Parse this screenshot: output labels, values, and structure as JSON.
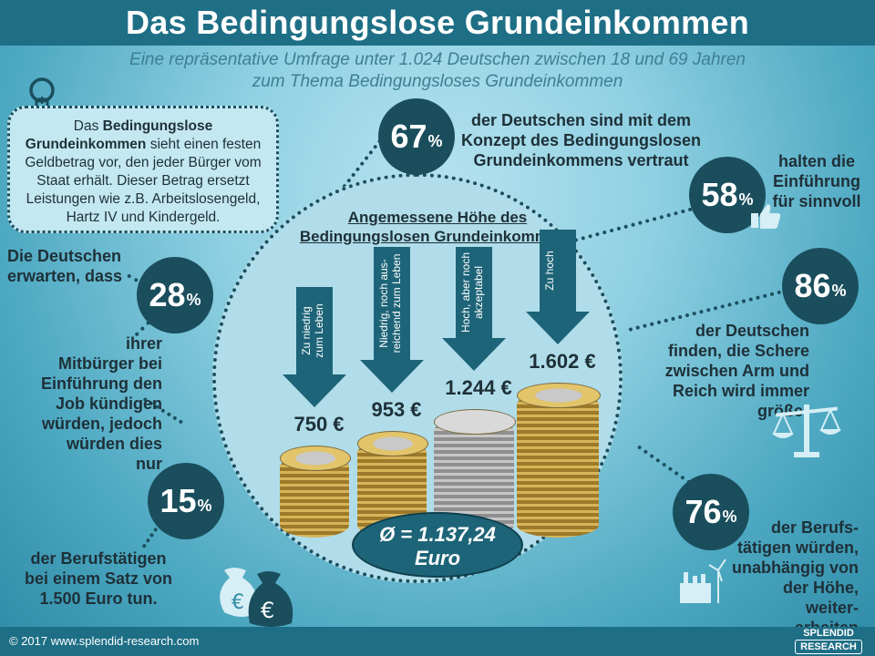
{
  "title": "Das Bedingungslose Grundeinkommen",
  "subtitle_line1": "Eine repräsentative Umfrage unter 1.024 Deutschen zwischen 18 und 69 Jahren",
  "subtitle_line2": "zum Thema Bedingungsloses  Grundeinkommen",
  "info": {
    "p1": "Das ",
    "p1_bold": "Bedingungslose",
    "p2_bold": "Grundeinkommen",
    "p2": " sieht einen festen",
    "line3": "Geldbetrag vor, den jeder Bürger vom",
    "line4": "Staat erhält. Dieser Betrag ersetzt",
    "line5": "Leistungen wie z.B. Arbeitslosengeld,",
    "line6": "Hartz IV und Kindergeld."
  },
  "stats": {
    "s67": {
      "value": "67",
      "unit": "%",
      "text": [
        "der Deutschen sind mit dem",
        "Konzept des Bedingungslosen",
        "Grundeinkommens vertraut"
      ]
    },
    "s58": {
      "value": "58",
      "unit": "%",
      "text": [
        "halten die",
        "Einführung",
        "für sinnvoll"
      ]
    },
    "s86": {
      "value": "86",
      "unit": "%",
      "text": [
        "der Deutschen",
        "finden, die Schere",
        "zwischen Arm und",
        "Reich wird immer",
        "größer"
      ]
    },
    "s76": {
      "value": "76",
      "unit": "%",
      "text": [
        "der Berufs-",
        "tätigen würden,",
        "unabhängig von",
        "der Höhe, weiter-",
        "arbeiten"
      ]
    },
    "s28": {
      "value": "28",
      "unit": "%",
      "pre": [
        "Die Deutschen",
        "erwarten, dass"
      ],
      "text": [
        "ihrer",
        "Mitbürger bei",
        "Einführung den",
        "Job kündigen",
        "würden, jedoch",
        "würden dies nur"
      ]
    },
    "s15": {
      "value": "15",
      "unit": "%",
      "text": [
        "der Berufstätigen",
        "bei einem Satz von",
        "1.500 Euro tun."
      ]
    }
  },
  "circle_title": [
    "Angemessene Höhe des",
    "Bedingungslosen Grundeinkommens"
  ],
  "chart_data": {
    "type": "bar",
    "categories": [
      "Zu niedrig zum Leben",
      "Niedrig, noch aus-reichend zum Leben",
      "Hoch, aber noch akzeptabel",
      "Zu hoch"
    ],
    "values": [
      750,
      953,
      1244,
      1602
    ],
    "unit": "€"
  },
  "arrows": [
    {
      "label1": "Zu niedrig",
      "label2": "zum Leben",
      "price": "750 €"
    },
    {
      "label1": "Niedrig, noch aus-",
      "label2": "reichend zum Leben",
      "price": "953 €"
    },
    {
      "label1": "Hoch, aber noch",
      "label2": "akzeptabel",
      "price": "1.244 €"
    },
    {
      "label1": "Zu hoch",
      "label2": "",
      "price": "1.602 €"
    }
  ],
  "average": {
    "line1": "Ø = 1.137,24",
    "line2": "Euro"
  },
  "footer": {
    "copyright": "© 2017  www.splendid-research.com",
    "logo1": "SPLENDID",
    "logo2": "RESEARCH"
  },
  "colors": {
    "dark": "#1a4e5d",
    "bar": "#1e6f86",
    "arrow": "#1d6478"
  }
}
